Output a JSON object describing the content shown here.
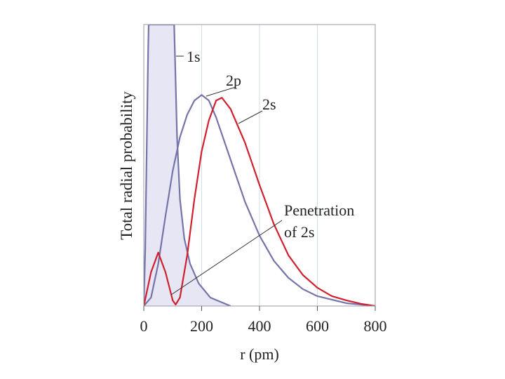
{
  "chart_data": {
    "type": "line",
    "x_label": "r (pm)",
    "y_label": "Total radial probability",
    "xlim": [
      0,
      800
    ],
    "xticks": [
      0,
      200,
      400,
      600,
      800
    ],
    "ylim": [
      0,
      100
    ],
    "grid": true,
    "series": [
      {
        "name": "1s",
        "color": "#7474a8",
        "fill": "#e6e6f4",
        "x": [
          0,
          5,
          10,
          15,
          17,
          105,
          115,
          125,
          140,
          160,
          190,
          230,
          300
        ],
        "values": [
          0,
          20,
          55,
          90,
          100,
          100,
          60,
          38,
          24,
          15,
          8,
          3,
          0
        ]
      },
      {
        "name": "2p",
        "color": "#7474a8",
        "x": [
          0,
          25,
          50,
          75,
          100,
          125,
          150,
          175,
          200,
          225,
          250,
          300,
          350,
          400,
          450,
          500,
          550,
          600,
          700,
          800
        ],
        "values": [
          0,
          3,
          15,
          32,
          48,
          60,
          68,
          73,
          75,
          73,
          67,
          52,
          37,
          25,
          16,
          10,
          6,
          3.5,
          1,
          0
        ]
      },
      {
        "name": "2s",
        "color": "#d0202e",
        "x": [
          0,
          25,
          50,
          75,
          100,
          110,
          125,
          150,
          175,
          200,
          225,
          250,
          270,
          300,
          350,
          400,
          450,
          500,
          550,
          600,
          650,
          700,
          750,
          800
        ],
        "values": [
          0,
          12,
          19,
          12,
          2,
          0.5,
          3,
          18,
          38,
          55,
          66,
          73,
          74,
          70,
          58,
          43,
          29,
          18,
          11,
          6.5,
          3.5,
          2,
          0.8,
          0
        ]
      }
    ],
    "annotations": [
      "Penetration",
      "of 2s"
    ]
  }
}
